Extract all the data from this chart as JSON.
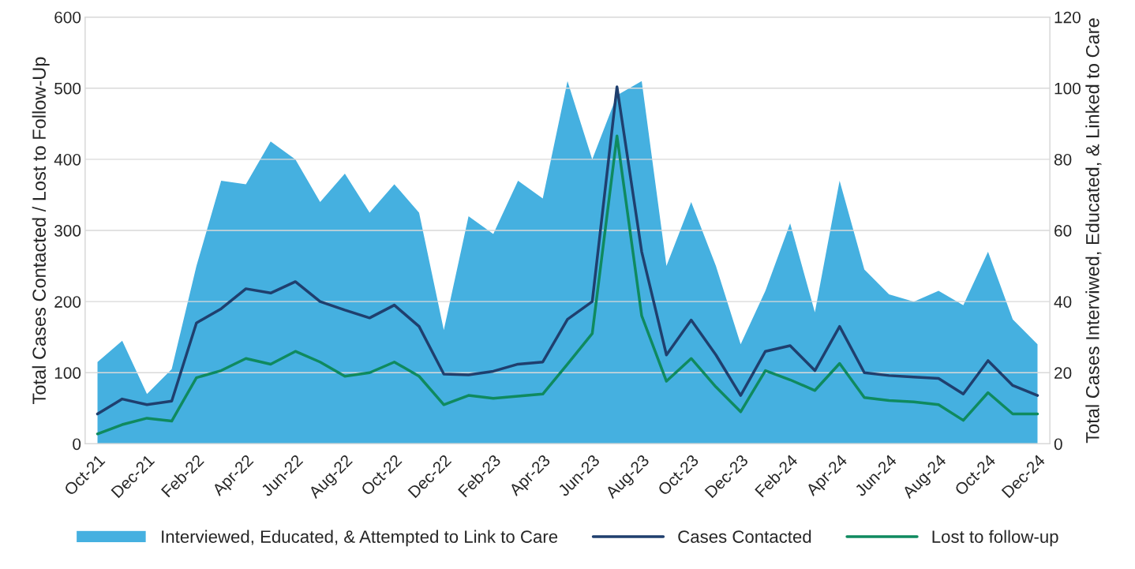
{
  "chart_data": {
    "type": "line",
    "categories": [
      "Oct-21",
      null,
      "Dec-21",
      null,
      "Feb-22",
      null,
      "Apr-22",
      null,
      "Jun-22",
      null,
      "Aug-22",
      null,
      "Oct-22",
      null,
      "Dec-22",
      null,
      "Feb-23",
      null,
      "Apr-23",
      null,
      "Jun-23",
      null,
      "Aug-23",
      null,
      "Oct-23",
      null,
      "Dec-23",
      null,
      "Feb-24",
      null,
      "Apr-24",
      null,
      "Jun-24",
      null,
      "Aug-24",
      null,
      "Oct-24",
      null,
      "Dec-24"
    ],
    "series": [
      {
        "name": "Interviewed, Educated, & Attempted to Link to Care",
        "type": "area",
        "axis": "y2",
        "color": "#45b0e0",
        "values": [
          23,
          29,
          14,
          21,
          50,
          74,
          73,
          85,
          80,
          68,
          76,
          65,
          73,
          65,
          32,
          64,
          59,
          74,
          69,
          102,
          80,
          98,
          102,
          50,
          68,
          50,
          28,
          43,
          62,
          37,
          74,
          49,
          42,
          40,
          43,
          39,
          54,
          35,
          28
        ]
      },
      {
        "name": "Cases Contacted",
        "color": "#1f3f6e",
        "values": [
          42,
          63,
          55,
          60,
          170,
          190,
          218,
          212,
          228,
          200,
          188,
          177,
          195,
          165,
          98,
          97,
          102,
          112,
          115,
          175,
          200,
          502,
          270,
          125,
          174,
          125,
          68,
          130,
          138,
          103,
          165,
          100,
          96,
          94,
          92,
          70,
          117,
          82,
          68
        ]
      },
      {
        "name": "Lost to follow-up",
        "color": "#0f8a5f",
        "values": [
          14,
          27,
          36,
          32,
          93,
          103,
          120,
          112,
          130,
          115,
          95,
          100,
          115,
          95,
          55,
          68,
          64,
          67,
          70,
          112,
          155,
          433,
          180,
          88,
          120,
          80,
          45,
          103,
          90,
          75,
          113,
          65,
          61,
          59,
          55,
          33,
          72,
          42,
          42
        ]
      }
    ],
    "ylabel": "Total Cases Contacted / Lost to Follow-Up",
    "y2label": "Total Cases Interviwed, Educated, & Linked to Care",
    "ylim": [
      0,
      600
    ],
    "yticks": [
      0,
      100,
      200,
      300,
      400,
      500,
      600
    ],
    "y2lim": [
      0,
      120
    ],
    "y2ticks": [
      0,
      20,
      40,
      60,
      80,
      100,
      120
    ],
    "grid": "y",
    "legend": "bottom"
  }
}
